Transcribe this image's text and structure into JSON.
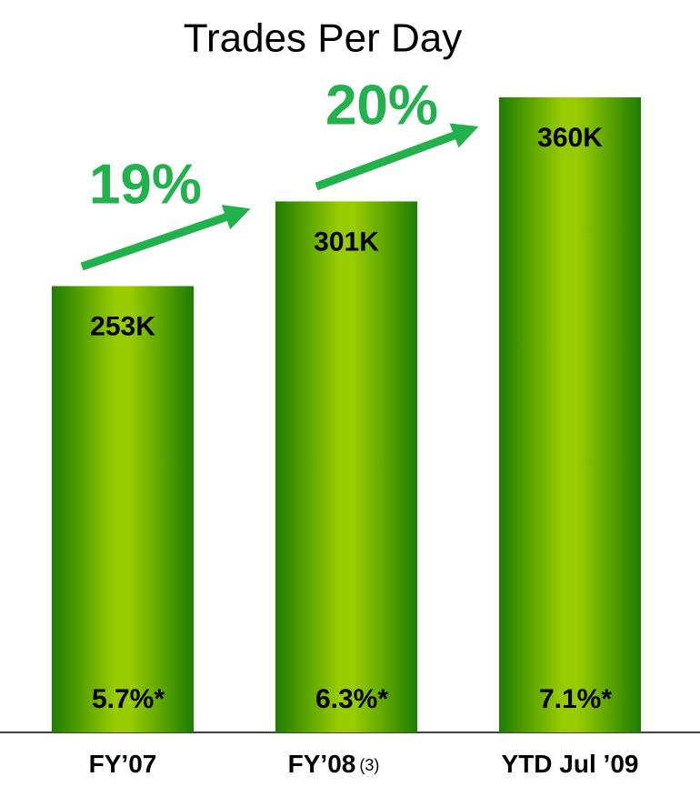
{
  "chart_data": {
    "type": "bar",
    "title": "Trades Per Day",
    "categories": [
      "FY’07",
      "FY’08",
      "YTD Jul ’09"
    ],
    "category_footnotes": [
      null,
      "(3)",
      null
    ],
    "values": [
      253,
      301,
      360
    ],
    "value_labels": [
      "253K",
      "301K",
      "360K"
    ],
    "bar_notes": [
      "5.7%*",
      "6.3%*",
      "7.1%*"
    ],
    "growth_labels": [
      "19%",
      "20%"
    ],
    "color": "#99cc00",
    "edge_color": "#1e7d00",
    "annotation_color": "#22b14c"
  }
}
